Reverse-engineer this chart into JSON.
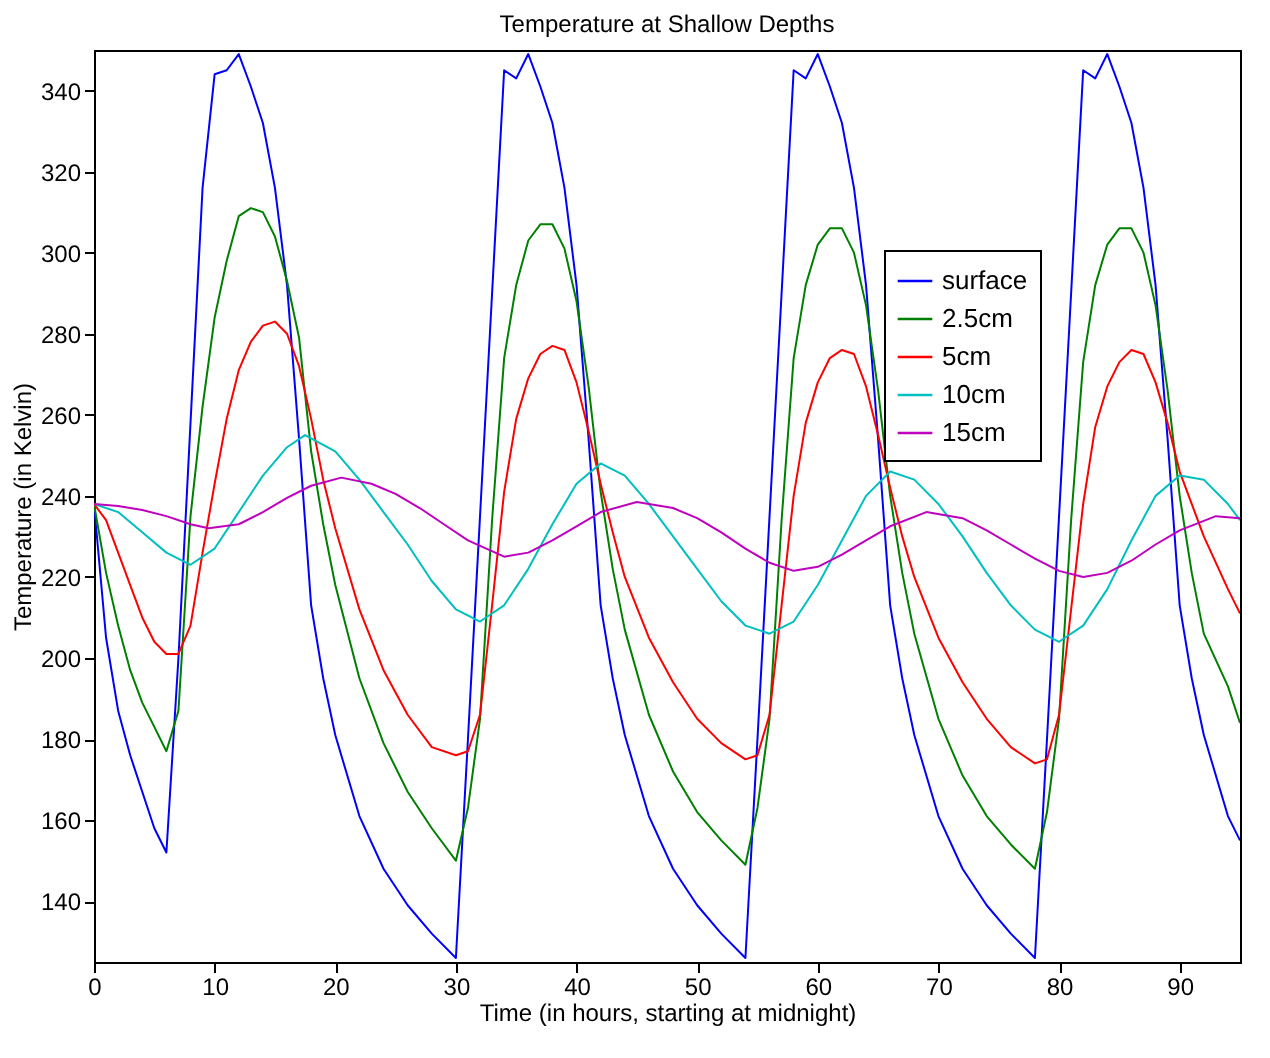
{
  "chart_data": {
    "type": "line",
    "title": "Temperature at Shallow Depths",
    "xlabel": "Time (in hours, starting at midnight)",
    "ylabel": "Temperature (in Kelvin)",
    "xlim": [
      0,
      95
    ],
    "ylim": [
      125,
      350
    ],
    "xticks": [
      0,
      10,
      20,
      30,
      40,
      50,
      60,
      70,
      80,
      90
    ],
    "yticks": [
      140,
      160,
      180,
      200,
      220,
      240,
      260,
      280,
      300,
      320,
      340
    ],
    "grid": false,
    "legend": "top right",
    "marker": "none",
    "line_style": "solid",
    "series": [
      {
        "name": "surface",
        "color": "#0000ff",
        "x": [
          0,
          1,
          2,
          3,
          4,
          5,
          6,
          7,
          8,
          9,
          10,
          11,
          12,
          13,
          14,
          15,
          16,
          17,
          18,
          19,
          20,
          22,
          24,
          26,
          28,
          30,
          31,
          32,
          33,
          34,
          35,
          36,
          37,
          38,
          39,
          40,
          41,
          42,
          43,
          44,
          46,
          48,
          50,
          52,
          54,
          55,
          56,
          57,
          58,
          59,
          60,
          61,
          62,
          63,
          64,
          65,
          66,
          67,
          68,
          70,
          72,
          74,
          76,
          78,
          79,
          80,
          81,
          82,
          83,
          84,
          85,
          86,
          87,
          88,
          89,
          90,
          91,
          92,
          94,
          95
        ],
        "values": [
          238,
          205,
          187,
          176,
          167,
          158,
          152,
          200,
          258,
          316,
          344,
          345,
          349,
          341,
          332,
          316,
          292,
          254,
          213,
          195,
          181,
          161,
          148,
          139,
          132,
          126,
          180,
          235,
          290,
          345,
          343,
          349,
          341,
          332,
          316,
          292,
          254,
          213,
          195,
          181,
          161,
          148,
          139,
          132,
          126,
          180,
          235,
          290,
          345,
          343,
          349,
          341,
          332,
          316,
          292,
          254,
          213,
          195,
          181,
          161,
          148,
          139,
          132,
          126,
          180,
          235,
          290,
          345,
          343,
          349,
          341,
          332,
          316,
          292,
          254,
          213,
          195,
          181,
          161,
          155
        ]
      },
      {
        "name": "2.5cm",
        "color": "#008000",
        "x": [
          0,
          1,
          2,
          3,
          4,
          5,
          6,
          7,
          8,
          9,
          10,
          11,
          12,
          13,
          14,
          15,
          16,
          17,
          18,
          19,
          20,
          22,
          24,
          26,
          28,
          30,
          31,
          32,
          33,
          34,
          35,
          36,
          37,
          38,
          39,
          40,
          41,
          42,
          43,
          44,
          46,
          48,
          50,
          52,
          54,
          55,
          56,
          57,
          58,
          59,
          60,
          61,
          62,
          63,
          64,
          65,
          66,
          67,
          68,
          70,
          72,
          74,
          76,
          78,
          79,
          80,
          81,
          82,
          83,
          84,
          85,
          86,
          87,
          88,
          89,
          90,
          91,
          92,
          94,
          95
        ],
        "values": [
          238,
          221,
          208,
          197,
          189,
          183,
          177,
          187,
          235,
          262,
          284,
          298,
          309,
          311,
          310,
          304,
          293,
          279,
          251,
          233,
          218,
          195,
          179,
          167,
          158,
          150,
          163,
          185,
          234,
          274,
          292,
          303,
          307,
          307,
          301,
          288,
          267,
          241,
          222,
          207,
          186,
          172,
          162,
          155,
          149,
          163,
          185,
          234,
          274,
          292,
          302,
          306,
          306,
          300,
          287,
          266,
          240,
          221,
          206,
          185,
          171,
          161,
          154,
          148,
          162,
          185,
          234,
          273,
          292,
          302,
          306,
          306,
          300,
          287,
          266,
          240,
          221,
          206,
          193,
          184
        ]
      },
      {
        "name": "5cm",
        "color": "#ff0000",
        "x": [
          0,
          1,
          2,
          3,
          4,
          5,
          6,
          7,
          8,
          9,
          10,
          11,
          12,
          13,
          14,
          15,
          16,
          17,
          18,
          19,
          20,
          22,
          24,
          26,
          28,
          30,
          31,
          32,
          33,
          34,
          35,
          36,
          37,
          38,
          39,
          40,
          41,
          42,
          43,
          44,
          46,
          48,
          50,
          52,
          54,
          55,
          56,
          57,
          58,
          59,
          60,
          61,
          62,
          63,
          64,
          65,
          66,
          67,
          68,
          70,
          72,
          74,
          76,
          78,
          79,
          80,
          81,
          82,
          83,
          84,
          85,
          86,
          87,
          88,
          89,
          90,
          92,
          94,
          95
        ],
        "values": [
          238,
          234,
          226,
          218,
          210,
          204,
          201,
          201,
          208,
          226,
          243,
          259,
          271,
          278,
          282,
          283,
          280,
          272,
          259,
          244,
          232,
          212,
          197,
          186,
          178,
          176,
          177,
          186,
          213,
          241,
          259,
          269,
          275,
          277,
          276,
          268,
          256,
          243,
          231,
          220,
          205,
          194,
          185,
          179,
          175,
          176,
          186,
          213,
          240,
          258,
          268,
          274,
          276,
          275,
          267,
          255,
          242,
          230,
          220,
          205,
          194,
          185,
          178,
          174,
          175,
          186,
          212,
          238,
          257,
          267,
          273,
          276,
          275,
          268,
          258,
          246,
          230,
          217,
          211
        ]
      },
      {
        "name": "10cm",
        "color": "#00bfbf",
        "x": [
          0,
          2,
          4,
          6,
          8,
          10,
          12,
          14,
          16,
          17.5,
          20,
          22,
          24,
          26,
          28,
          30,
          32,
          34,
          36,
          38,
          40,
          42,
          44,
          46,
          48,
          50,
          52,
          54,
          56,
          58,
          60,
          62,
          64,
          66,
          68,
          70,
          72,
          74,
          76,
          78,
          80,
          82,
          84,
          86,
          88,
          90,
          92,
          94,
          95
        ],
        "values": [
          238,
          236,
          231,
          226,
          223,
          227,
          236,
          245,
          252,
          255,
          251,
          244,
          236,
          228,
          219,
          212,
          209,
          213,
          222,
          233,
          243,
          248,
          245,
          238,
          230,
          222,
          214,
          208,
          206,
          209,
          218,
          229,
          240,
          246,
          244,
          238,
          230,
          221,
          213,
          207,
          204,
          208,
          217,
          229,
          240,
          245,
          244,
          238,
          234
        ]
      },
      {
        "name": "15cm",
        "color": "#bf00bf",
        "x": [
          0,
          2,
          4,
          6,
          8,
          9.5,
          12,
          14,
          16,
          18,
          20.5,
          23,
          25,
          27,
          29,
          31,
          34,
          36,
          38,
          40,
          42,
          45,
          48,
          50,
          52,
          54,
          56,
          58,
          60,
          62,
          64,
          66,
          69,
          72,
          74,
          76,
          78,
          80,
          82,
          84,
          86,
          88,
          90,
          93,
          95
        ],
        "values": [
          238,
          237.5,
          236.5,
          235,
          233,
          232,
          233,
          236,
          239.5,
          242.5,
          244.5,
          243,
          240.5,
          237,
          233,
          229,
          225,
          226,
          229,
          232.5,
          236,
          238.5,
          237,
          234.5,
          231,
          227,
          223.5,
          221.5,
          222.5,
          225.5,
          229,
          232.5,
          236,
          234.5,
          231.5,
          228,
          224.5,
          221.5,
          220,
          221,
          224,
          228,
          231.5,
          235,
          234.5
        ]
      }
    ]
  }
}
